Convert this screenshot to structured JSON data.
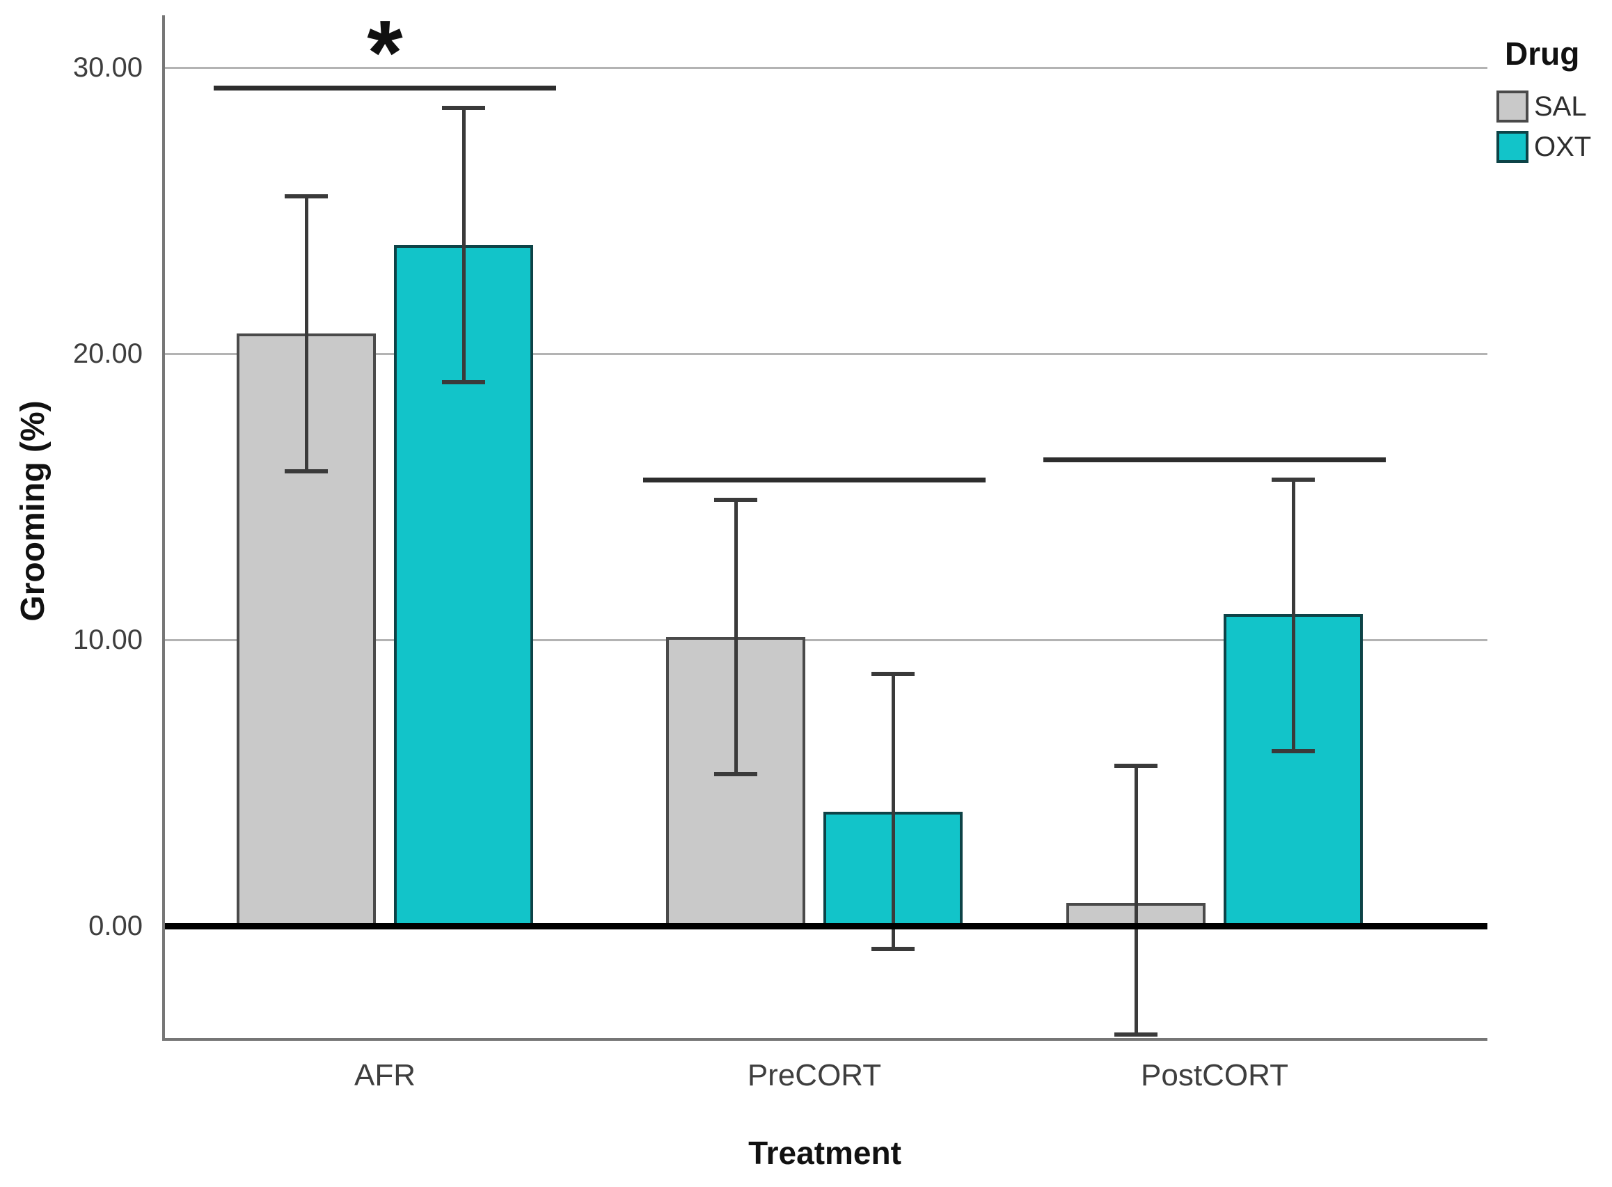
{
  "chart_data": {
    "type": "bar",
    "title": "",
    "xlabel": "Treatment",
    "ylabel": "Grooming (%)",
    "categories": [
      "AFR",
      "PreCORT",
      "PostCORT"
    ],
    "series": [
      {
        "name": "SAL",
        "color": "#c9c9c9",
        "border_color": "#4a4a4a",
        "values": [
          20.7,
          10.1,
          0.8
        ],
        "ci_low": [
          15.9,
          5.3,
          -3.8
        ],
        "ci_high": [
          25.5,
          14.9,
          5.6
        ]
      },
      {
        "name": "OXT",
        "color": "#12c4c9",
        "border_color": "#0d4347",
        "values": [
          23.8,
          4.0,
          10.9
        ],
        "ci_low": [
          19.0,
          -0.8,
          6.1
        ],
        "ci_high": [
          28.6,
          8.8,
          15.6
        ]
      }
    ],
    "legend": {
      "title": "Drug",
      "position": "top-right",
      "entries": [
        {
          "label": "SAL",
          "color": "#c9c9c9",
          "border_color": "#4a4a4a"
        },
        {
          "label": "OXT",
          "color": "#12c4c9",
          "border_color": "#0d4347"
        }
      ]
    },
    "yticks": [
      {
        "label": "0.00",
        "value": 0
      },
      {
        "label": "10.00",
        "value": 10
      },
      {
        "label": "20.00",
        "value": 20
      },
      {
        "label": "30.00",
        "value": 30
      }
    ],
    "ylim": [
      -4.0,
      31.8
    ],
    "grid": true,
    "error_bars": "whiskers with caps",
    "zero_line_color": "#000000",
    "significance_marks": [
      {
        "category": "AFR",
        "label": "*",
        "y_value": 29.3
      },
      {
        "category": "PreCORT",
        "label": "",
        "y_value": 15.6
      },
      {
        "category": "PostCORT",
        "label": "",
        "y_value": 16.3
      }
    ]
  }
}
